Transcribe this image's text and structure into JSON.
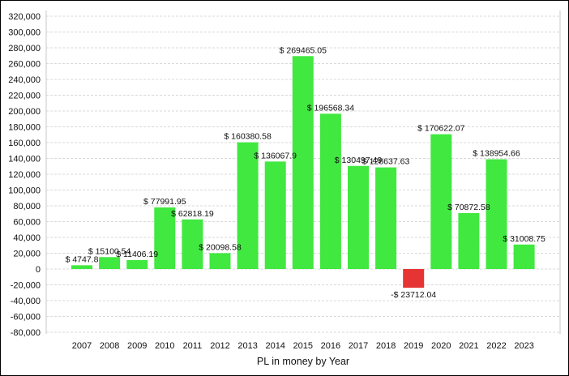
{
  "chart_data": {
    "type": "bar",
    "title": "",
    "xlabel": "PL in money by Year",
    "ylabel": "",
    "ylim": [
      -80000,
      320000
    ],
    "ytick_step": 20000,
    "grid": true,
    "categories": [
      "2007",
      "2008",
      "2009",
      "2010",
      "2011",
      "2012",
      "2013",
      "2014",
      "2015",
      "2016",
      "2017",
      "2018",
      "2019",
      "2020",
      "2021",
      "2022",
      "2023"
    ],
    "values": [
      4747.8,
      15100.54,
      11406.19,
      77991.95,
      62818.19,
      20098.58,
      160380.58,
      136067.9,
      269465.05,
      196568.34,
      130497.49,
      128637.63,
      -23712.04,
      170622.07,
      70872.58,
      138954.66,
      31008.75
    ],
    "data_labels": [
      "$ 4747.8",
      "$ 15100.54",
      "$ 11406.19",
      "$ 77991.95",
      "$ 62818.19",
      "$ 20098.58",
      "$ 160380.58",
      "$ 136067.9",
      "$ 269465.05",
      "$ 196568.34",
      "$ 130497.49",
      "$ 128637.63",
      "-$ 23712.04",
      "$ 170622.07",
      "$ 70872.58",
      "$ 138954.66",
      "$ 31008.75"
    ],
    "colors": {
      "positive": "#40e840",
      "negative": "#e63333"
    }
  }
}
